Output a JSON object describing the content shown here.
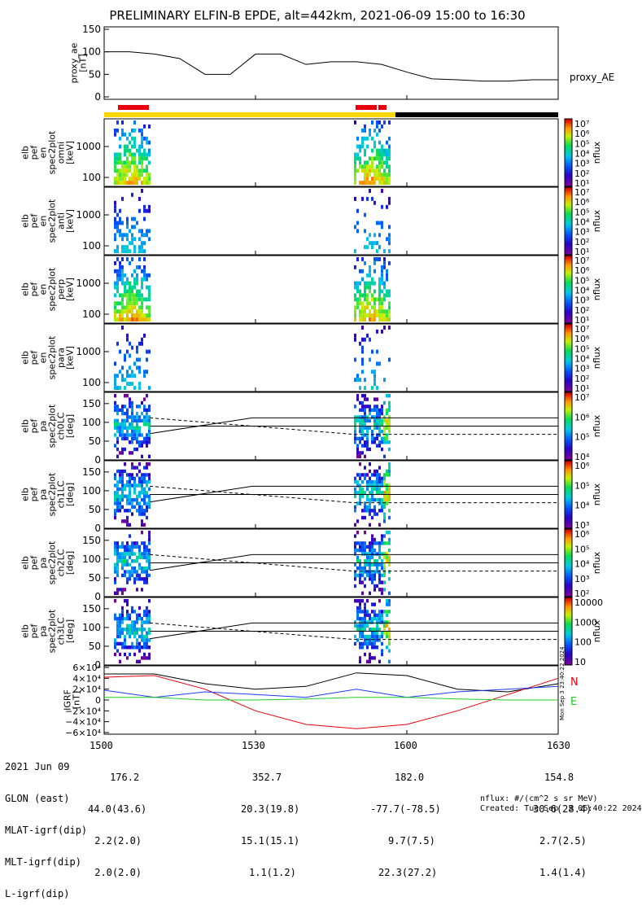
{
  "title": "PRELIMINARY ELFIN-B EPDE, alt=442km, 2021-06-09 15:00 to 16:30",
  "colors": {
    "yellow_bar": "#ffd700",
    "black_bar": "#000000",
    "red_marker": "#e8000b",
    "comp_D": "#e8000b",
    "comp_E": "#22cc22",
    "comp_B": "#1a3cff"
  },
  "chart_data": [
    {
      "type": "line",
      "panel": "proxy_ae",
      "ylabel": "proxy_ae\n[nT]",
      "legend": "proxy_AE",
      "yticks": [
        "150",
        "100",
        "50",
        "0"
      ],
      "ylim": [
        0,
        150
      ],
      "x_min": [
        0,
        5,
        10,
        15,
        20,
        25,
        30,
        35,
        40,
        45,
        50,
        55,
        60,
        65,
        70,
        75,
        80,
        85,
        90
      ],
      "values": [
        100,
        100,
        95,
        85,
        50,
        50,
        95,
        95,
        72,
        78,
        78,
        72,
        55,
        40,
        38,
        35,
        35,
        38,
        38
      ]
    },
    {
      "type": "heatmap",
      "panel": "omni",
      "ylabel": "elb\npef\nen\nspec2plot\nomni\n[keV]",
      "yticks": [
        "1000",
        "100"
      ],
      "cbar_ticks": [
        "10⁷",
        "10⁶",
        "10⁵",
        "10⁴",
        "10³",
        "10²",
        "10¹"
      ],
      "cbar_label": "nflux"
    },
    {
      "type": "heatmap",
      "panel": "anti",
      "ylabel": "elb\npef\nen\nspec2plot\nanti\n[keV]",
      "yticks": [
        "1000",
        "100"
      ],
      "cbar_ticks": [
        "10⁷",
        "10⁶",
        "10⁵",
        "10⁴",
        "10³",
        "10²",
        "10¹"
      ],
      "cbar_label": "nflux"
    },
    {
      "type": "heatmap",
      "panel": "perp",
      "ylabel": "elb\npef\nen\nspec2plot\nperp\n[keV]",
      "yticks": [
        "1000",
        "100"
      ],
      "cbar_ticks": [
        "10⁷",
        "10⁶",
        "10⁵",
        "10⁴",
        "10³",
        "10²",
        "10¹"
      ],
      "cbar_label": "nflux"
    },
    {
      "type": "heatmap",
      "panel": "para",
      "ylabel": "elb\npef\nen\nspec2plot\npara\n[keV]",
      "yticks": [
        "1000",
        "100"
      ],
      "cbar_ticks": [
        "10⁷",
        "10⁶",
        "10⁵",
        "10⁴",
        "10³",
        "10²",
        "10¹"
      ],
      "cbar_label": "nflux"
    },
    {
      "type": "heatmap",
      "panel": "ch0LC",
      "ylabel": "elb\npef\npa\nspec2plot\nch0LC\n[deg]",
      "yticks": [
        "150",
        "100",
        "50",
        "0"
      ],
      "cbar_ticks": [
        "10⁷",
        "10⁶",
        "10⁵",
        "10⁴"
      ],
      "cbar_label": "nflux"
    },
    {
      "type": "heatmap",
      "panel": "ch1LC",
      "ylabel": "elb\npef\npa\nspec2plot\nch1LC\n[deg]",
      "yticks": [
        "150",
        "100",
        "50",
        "0"
      ],
      "cbar_ticks": [
        "10⁶",
        "10⁵",
        "10⁴",
        "10³"
      ],
      "cbar_label": "nflux"
    },
    {
      "type": "heatmap",
      "panel": "ch2LC",
      "ylabel": "elb\npef\npa\nspec2plot\nch2LC\n[deg]",
      "yticks": [
        "150",
        "100",
        "50",
        "0"
      ],
      "cbar_ticks": [
        "10⁶",
        "10⁵",
        "10⁴",
        "10³",
        "10²"
      ],
      "cbar_label": "nflux"
    },
    {
      "type": "heatmap",
      "panel": "ch3LC",
      "ylabel": "elb\npef\npa\nspec2plot\nch3LC\n[deg]",
      "yticks": [
        "150",
        "100",
        "50",
        "0"
      ],
      "cbar_ticks": [
        "10000",
        "1000",
        "100",
        "10"
      ],
      "cbar_label": "nflux"
    },
    {
      "type": "line",
      "panel": "igrf",
      "ylabel": "IGRF\n[nT]",
      "yticks": [
        "6×10⁴",
        "4×10⁴",
        "2×10⁴",
        "0",
        "−2×10⁴",
        "−4×10⁴",
        "−6×10⁴"
      ],
      "ylim": [
        -60000,
        60000
      ],
      "legend": [
        "N",
        "E"
      ],
      "x_min": [
        0,
        10,
        20,
        30,
        40,
        50,
        60,
        70,
        80,
        90
      ],
      "series": [
        {
          "values": [
            48000,
            48000,
            30000,
            20000,
            25000,
            50000,
            45000,
            20000,
            15000,
            30000
          ]
        },
        {
          "values": [
            42000,
            45000,
            20000,
            -20000,
            -45000,
            -53000,
            -45000,
            -20000,
            10000,
            40000
          ]
        },
        {
          "values": [
            18000,
            5000,
            15000,
            10000,
            5000,
            20000,
            5000,
            15000,
            20000,
            25000
          ]
        },
        {
          "values": [
            5000,
            5000,
            0,
            0,
            2000,
            5000,
            5000,
            2000,
            0,
            0
          ]
        }
      ],
      "side_note": "Mon Sep  3 23:40:22 2024"
    }
  ],
  "footer": {
    "row_labels": [
      "2021 Jun 09",
      "GLON (east)",
      "MLAT-igrf(dip)",
      "MLT-igrf(dip)",
      "L-igrf(dip)"
    ],
    "time_ticks": [
      "1500",
      "1530",
      "1600",
      "1630"
    ],
    "col1": [
      "176.2",
      "44.0(43.6)",
      "2.2(2.0)",
      "2.0(2.0)"
    ],
    "col2": [
      "352.7",
      "20.3(19.8)",
      "15.1(15.1)",
      "1.1(1.2)"
    ],
    "col3": [
      "182.0",
      "-77.7(-78.5)",
      "9.7(7.5)",
      "22.3(27.2)"
    ],
    "col4": [
      "154.8",
      "30.6(28.4)",
      "2.7(2.5)",
      "1.4(1.4)"
    ],
    "nflux_units": "nflux: #/(cm^2 s sr MeV)",
    "created": "Created: Tue Sep  3 06:40:22 2024"
  }
}
